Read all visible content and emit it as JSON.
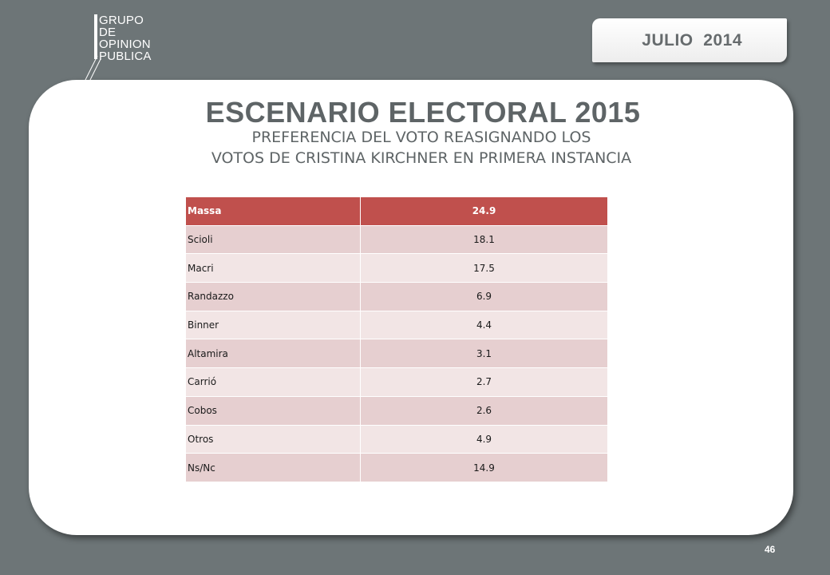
{
  "logo": {
    "lines": [
      "GRUPO",
      "DE",
      "OPINION",
      "PUBLICA"
    ]
  },
  "date_badge": {
    "label": "JULIO  2014"
  },
  "header": {
    "title": "ESCENARIO ELECTORAL 2015",
    "subtitle_line1": "PREFERENCIA DEL VOTO REASIGNANDO LOS",
    "subtitle_line2": "VOTOS DE CRISTINA KIRCHNER EN PRIMERA INSTANCIA"
  },
  "table": {
    "header": {
      "name": "Massa",
      "value": "24.9"
    },
    "rows": [
      {
        "name": "Scioli",
        "value": "18.1"
      },
      {
        "name": "Macri",
        "value": "17.5"
      },
      {
        "name": "Randazzo",
        "value": "6.9"
      },
      {
        "name": "Binner",
        "value": "4.4"
      },
      {
        "name": "Altamira",
        "value": "3.1"
      },
      {
        "name": "Carrió",
        "value": "2.7"
      },
      {
        "name": "Cobos",
        "value": "2.6"
      },
      {
        "name": "Otros",
        "value": "4.9"
      },
      {
        "name": "Ns/Nc",
        "value": "14.9"
      }
    ]
  },
  "colors": {
    "background": "#6d7577",
    "header_row": "#c0504d",
    "row_dark": "#e6cfd0",
    "row_light": "#f2e5e5",
    "title_text": "#5e6466"
  },
  "page_number": "46"
}
